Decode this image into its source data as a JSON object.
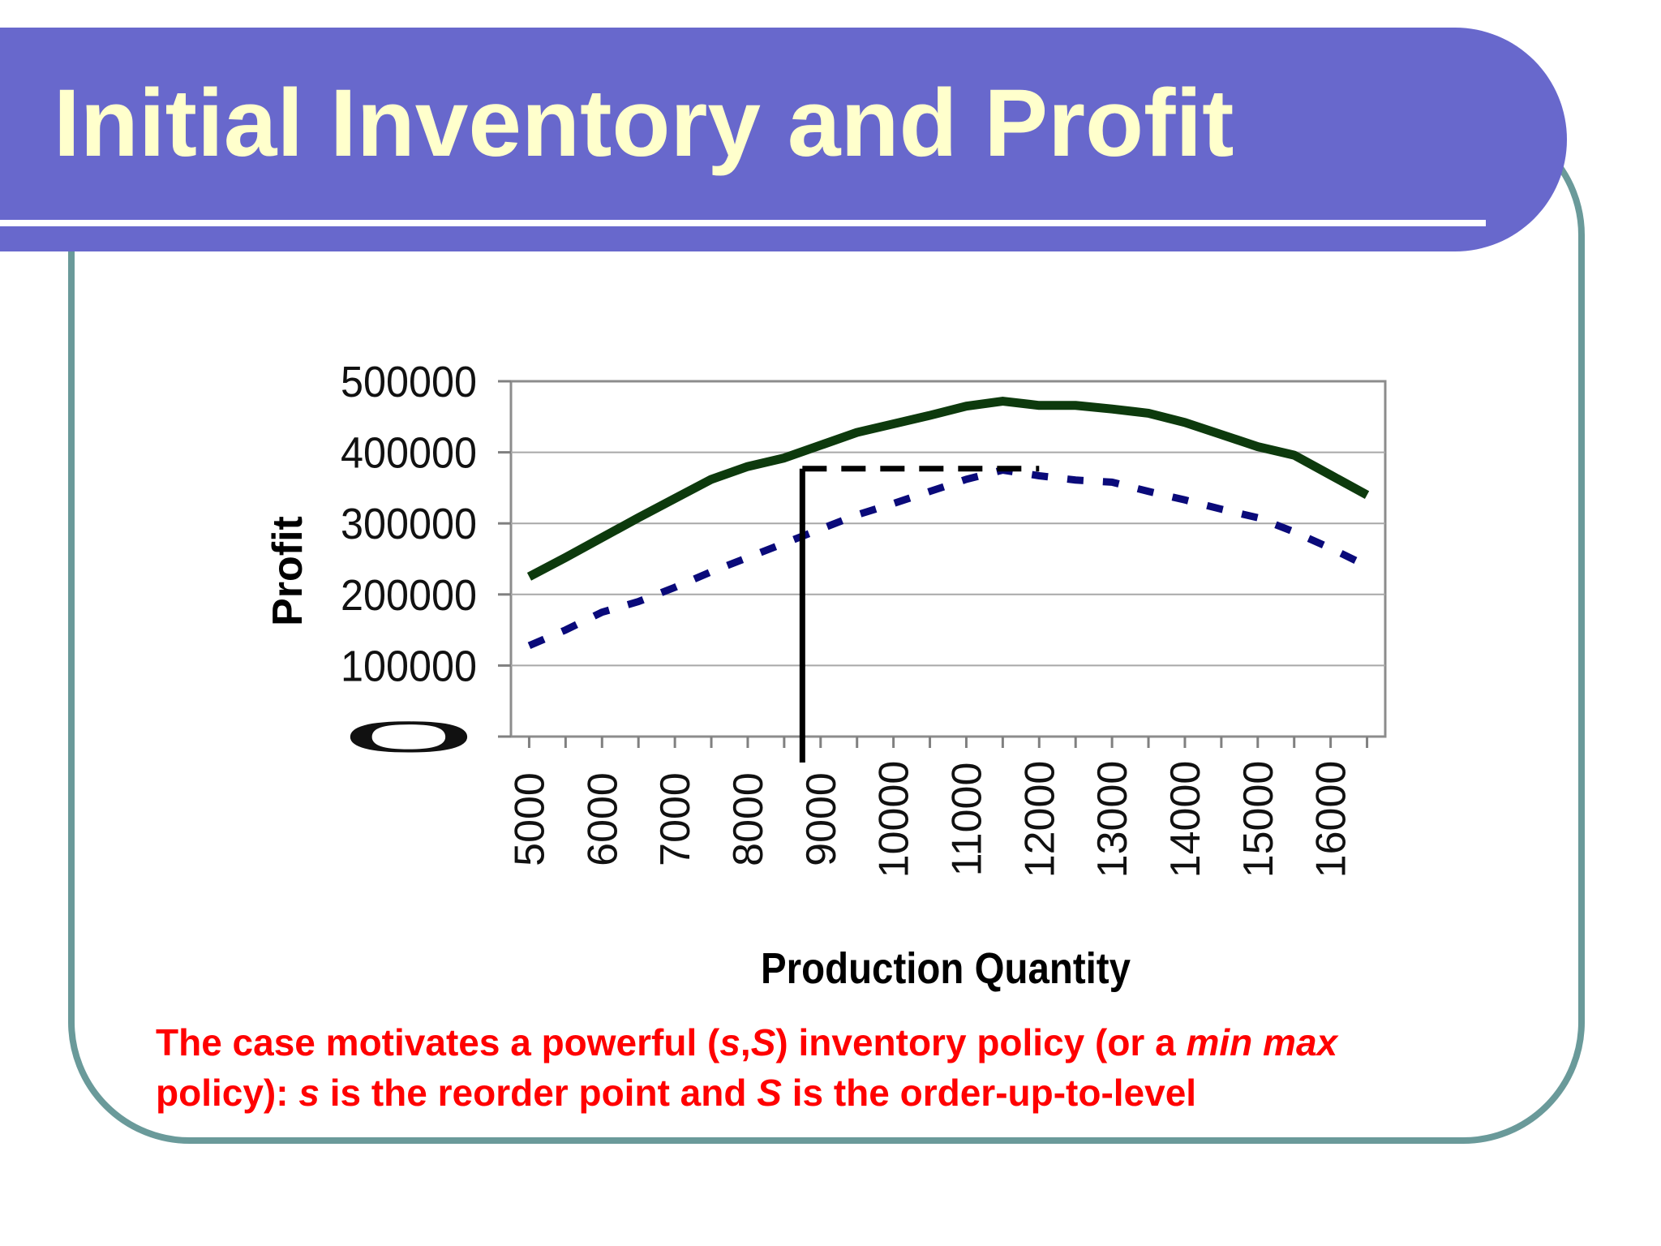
{
  "slide": {
    "title": "Initial Inventory and Profit",
    "caption": {
      "line1": [
        "The case motivates a powerful (",
        "s",
        ",",
        "S",
        ") inventory policy (or a ",
        "min max"
      ],
      "line2": [
        "policy): ",
        "s",
        " is the reorder point and ",
        "S",
        " is the order-up-to-level"
      ]
    },
    "colors": {
      "band": "#6868cc",
      "title_text": "#ffffcc",
      "frame": "#6a9a9a",
      "caption_text": "#ff0000"
    }
  },
  "chart_data": {
    "type": "line",
    "xlabel": "Production Quantity",
    "ylabel": "Profit",
    "ylim": [
      0,
      500000
    ],
    "yticks": [
      "0",
      "100000",
      "200000",
      "300000",
      "400000",
      "500000"
    ],
    "x_tick_labels": [
      "5000",
      "6000",
      "7000",
      "8000",
      "9000",
      "10000",
      "11000",
      "12000",
      "13000",
      "14000",
      "15000",
      "16000"
    ],
    "x": [
      5000,
      5500,
      6000,
      6500,
      7000,
      7500,
      8000,
      8500,
      9000,
      9500,
      10000,
      10500,
      11000,
      11500,
      12000,
      12500,
      13000,
      13500,
      14000,
      14500,
      15000,
      15500,
      16000,
      16500
    ],
    "xlim": [
      4750,
      16750
    ],
    "grid": true,
    "series": [
      {
        "style": "solid",
        "color": "#0d3a0d",
        "values": [
          225000,
          252000,
          280000,
          308000,
          335000,
          362000,
          380000,
          392000,
          410000,
          428000,
          440000,
          452000,
          465000,
          472000,
          466000,
          466000,
          461000,
          455000,
          442000,
          425000,
          408000,
          396000,
          368000,
          340000
        ]
      },
      {
        "style": "dashed",
        "color": "#0a0a7a",
        "values": [
          128000,
          150000,
          175000,
          190000,
          210000,
          232000,
          252000,
          272000,
          292000,
          312000,
          328000,
          345000,
          362000,
          375000,
          367000,
          361000,
          358000,
          345000,
          333000,
          320000,
          308000,
          288000,
          265000,
          240000
        ]
      }
    ],
    "annotation": {
      "x": 8750,
      "y": 377000
    }
  }
}
